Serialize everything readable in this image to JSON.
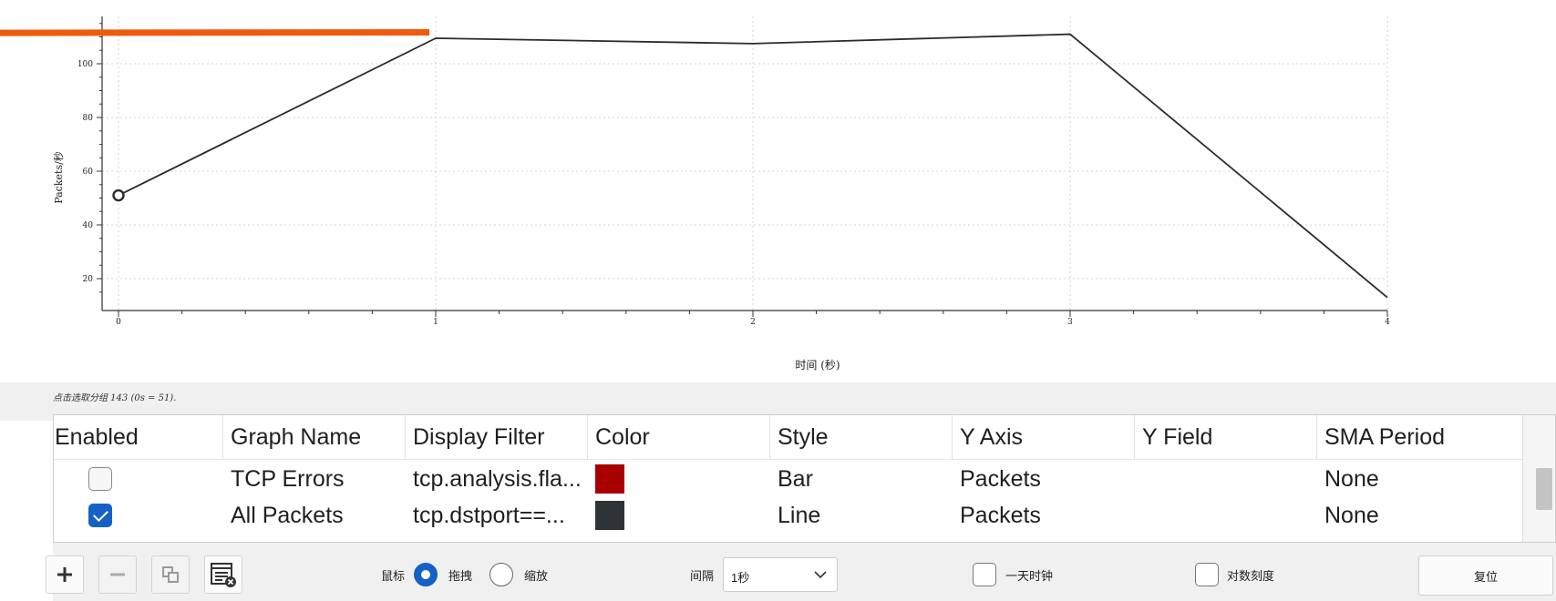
{
  "chart_data": {
    "type": "line",
    "ylabel": "Packets/秒",
    "xlabel": "时间 (秒)",
    "x_ticks": [
      "0",
      "1",
      "2",
      "3",
      "4"
    ],
    "y_ticks": [
      "20",
      "40",
      "60",
      "80",
      "100"
    ],
    "xlim": [
      -0.05,
      4.13
    ],
    "ylim": [
      10,
      118
    ],
    "grid": true,
    "series": [
      {
        "name": "All Packets",
        "x": [
          0,
          1,
          2,
          3,
          4
        ],
        "y": [
          51,
          109.5,
          107.5,
          111,
          13
        ],
        "color": "#2b2b2b",
        "marker_at_first": true
      }
    ],
    "highlight_line": {
      "color": "#f05a0e",
      "x": [
        -0.4,
        0.98
      ],
      "y": [
        111.5,
        111.7
      ]
    }
  },
  "status": {
    "text": "点击选取分组 143 (0s = 51)."
  },
  "table": {
    "headers": [
      "Enabled",
      "Graph Name",
      "Display Filter",
      "Color",
      "Style",
      "Y Axis",
      "Y Field",
      "SMA Period"
    ],
    "rows": [
      {
        "enabled": false,
        "name": "TCP Errors",
        "filter": "tcp.analysis.fla...",
        "color": "#a80000",
        "style": "Bar",
        "y_axis": "Packets",
        "y_field": "",
        "sma": "None"
      },
      {
        "enabled": true,
        "name": "All Packets",
        "filter": "tcp.dstport==...",
        "color": "#2e3338",
        "style": "Line",
        "y_axis": "Packets",
        "y_field": "",
        "sma": "None"
      }
    ]
  },
  "toolbar": {
    "add_icon": "plus-icon",
    "remove_icon": "minus-icon",
    "copy_icon": "copy-icon",
    "clear_icon": "list-clear-icon",
    "mouse_label": "鼠标",
    "drag_label": "拖拽",
    "zoom_label": "缩放",
    "mouse_mode": "drag",
    "interval_label": "间隔",
    "interval_value": "1秒",
    "time_of_day_label": "一天时钟",
    "log_scale_label": "对数刻度",
    "reset_label": "复位"
  }
}
